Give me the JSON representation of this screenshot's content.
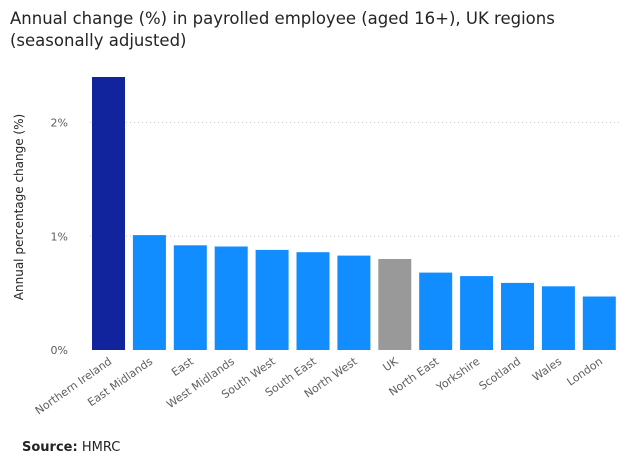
{
  "chart_data": {
    "type": "bar",
    "title": "Annual change (%) in payrolled employee (aged 16+), UK regions (seasonally adjusted)",
    "xlabel": "",
    "ylabel": "Annual percentage change (%)",
    "categories": [
      "Northern Ireland",
      "East Midlands",
      "East",
      "West Midlands",
      "South West",
      "South East",
      "North West",
      "UK",
      "North East",
      "Yorkshire",
      "Scotland",
      "Wales",
      "London"
    ],
    "values": [
      2.4,
      1.01,
      0.92,
      0.91,
      0.88,
      0.86,
      0.83,
      0.8,
      0.68,
      0.65,
      0.59,
      0.56,
      0.47
    ],
    "colors": [
      "#12239e",
      "#118dff",
      "#118dff",
      "#118dff",
      "#118dff",
      "#118dff",
      "#118dff",
      "#999999",
      "#118dff",
      "#118dff",
      "#118dff",
      "#118dff",
      "#118dff"
    ],
    "yticks": [
      "0%",
      "1%",
      "2%"
    ],
    "ytick_values": [
      0,
      1,
      2
    ],
    "ylim": [
      0,
      2.4
    ],
    "grid": true,
    "legend": "none"
  },
  "source": {
    "label": "Source:",
    "value": "HMRC"
  }
}
